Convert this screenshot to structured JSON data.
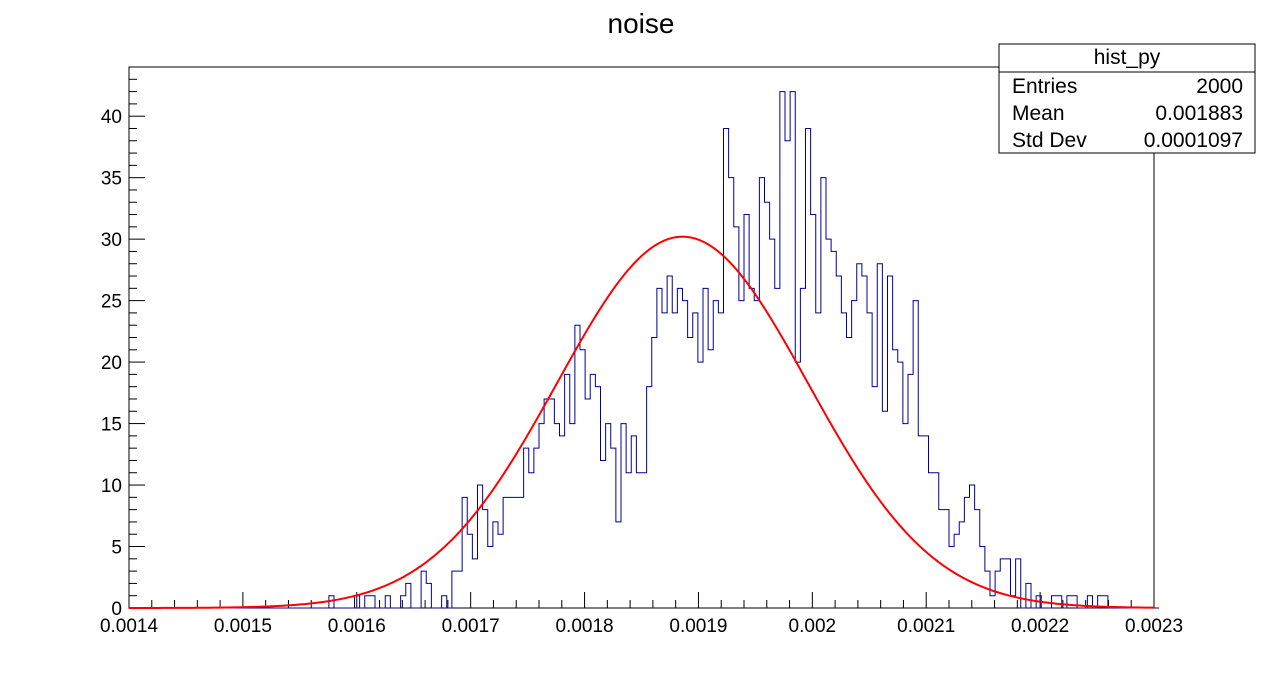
{
  "chart_data": {
    "type": "histogram",
    "title": "noise",
    "xlabel": "",
    "ylabel": "",
    "xlim": [
      0.0014,
      0.0023
    ],
    "ylim": [
      0,
      44
    ],
    "x_tick_labels": [
      "0.0014",
      "0.0015",
      "0.0016",
      "0.0017",
      "0.0018",
      "0.0019",
      "0.002",
      "0.0021",
      "0.0022",
      "0.0023"
    ],
    "y_tick_labels": [
      "0",
      "5",
      "10",
      "15",
      "20",
      "25",
      "30",
      "35",
      "40"
    ],
    "grid": false,
    "bins": {
      "start": 0.0014,
      "width": 4.5e-06,
      "counts": [
        0,
        0,
        0,
        0,
        0,
        0,
        0,
        0,
        0,
        0,
        0,
        0,
        0,
        0,
        0,
        0,
        0,
        0,
        0,
        0,
        0,
        0,
        0,
        0,
        0,
        0,
        0,
        0,
        0,
        0,
        0,
        0,
        0,
        0,
        0,
        0,
        0,
        0,
        0,
        1,
        0,
        0,
        0,
        0,
        1,
        0,
        1,
        1,
        0,
        0,
        1,
        0,
        0,
        1,
        2,
        0,
        0,
        3,
        2,
        0,
        0,
        1,
        0,
        3,
        3,
        9,
        6,
        4,
        10,
        8,
        5,
        7,
        6,
        9,
        9,
        9,
        9,
        13,
        11,
        13,
        15,
        17,
        17,
        15,
        14,
        19,
        15,
        23,
        21,
        17,
        19,
        18,
        12,
        15,
        13,
        7,
        15,
        11,
        14,
        11,
        11,
        18,
        22,
        26,
        24,
        27,
        24,
        26,
        25,
        22,
        24,
        20,
        26,
        21,
        25,
        24,
        39,
        35,
        31,
        25,
        32,
        26,
        25,
        35,
        33,
        30,
        26,
        42,
        38,
        42,
        20,
        26,
        39,
        32,
        24,
        35,
        30,
        29,
        27,
        24,
        22,
        25,
        28,
        27,
        24,
        18,
        28,
        16,
        27,
        21,
        20,
        15,
        19,
        25,
        14,
        14,
        11,
        11,
        8,
        8,
        5,
        6,
        7,
        9,
        10,
        8,
        5,
        3,
        1,
        3,
        4,
        4,
        1,
        4,
        0,
        2,
        0,
        1,
        0,
        0,
        1,
        1,
        0,
        1,
        1,
        0,
        0,
        1,
        0,
        1,
        1,
        0,
        0,
        0,
        0,
        0,
        0,
        0,
        0,
        0,
        0
      ]
    },
    "series": [
      {
        "type": "histogram",
        "color": "#000099"
      },
      {
        "type": "gaussian-fit",
        "color": "#ff0000",
        "constant": 30.2,
        "mean": 0.001886,
        "sigma": 0.00011
      }
    ],
    "stats_box": {
      "title": "hist_py",
      "rows": [
        {
          "label": "Entries",
          "value": "2000"
        },
        {
          "label": "Mean",
          "value": "0.001883"
        },
        {
          "label": "Std Dev",
          "value": "0.0001097"
        }
      ]
    }
  }
}
